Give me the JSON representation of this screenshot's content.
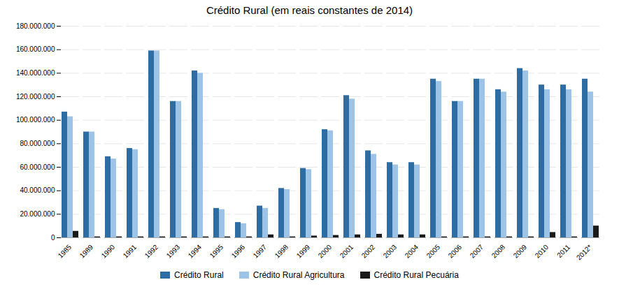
{
  "chart_data": {
    "type": "bar",
    "title": "Crédito Rural (em reais constantes de 2014)",
    "categories": [
      "1985",
      "1989",
      "1990",
      "1991",
      "1992",
      "1993",
      "1994",
      "1995",
      "1996",
      "1997",
      "1998",
      "1999",
      "2000",
      "2001",
      "2002",
      "2003",
      "2004",
      "2005",
      "2006",
      "2007",
      "2008",
      "2009",
      "2010",
      "2011",
      "2012*"
    ],
    "series": [
      {
        "name": "Crédito Rural",
        "color": "#2e6da4",
        "values": [
          107000000,
          90000000,
          69000000,
          76000000,
          159000000,
          116000000,
          142000000,
          25000000,
          13000000,
          27000000,
          42000000,
          59000000,
          92000000,
          121000000,
          74000000,
          64000000,
          64000000,
          135000000,
          116000000,
          135000000,
          126000000,
          144000000,
          130000000,
          130000000,
          135000000
        ]
      },
      {
        "name": "Crédito Rural Agricultura",
        "color": "#9dc3e6",
        "values": [
          103000000,
          90000000,
          67000000,
          75000000,
          159000000,
          116000000,
          140000000,
          24000000,
          12000000,
          25000000,
          41000000,
          58000000,
          91000000,
          118000000,
          71000000,
          62000000,
          62000000,
          133000000,
          116000000,
          135000000,
          124000000,
          142000000,
          126000000,
          126000000,
          124000000
        ]
      },
      {
        "name": "Crédito Rural Pecuária",
        "color": "#1a1a1a",
        "values": [
          5500000,
          800000,
          800000,
          800000,
          800000,
          800000,
          800000,
          800000,
          800000,
          2500000,
          800000,
          1500000,
          2000000,
          2500000,
          3000000,
          2500000,
          2500000,
          800000,
          800000,
          800000,
          800000,
          800000,
          4500000,
          800000,
          10000000
        ]
      }
    ],
    "ylim": [
      0,
      180000000
    ],
    "yticks": [
      0,
      {
        "value": 20000000,
        "label": "20.000.000"
      },
      {
        "value": 40000000,
        "label": "40.000.000"
      },
      {
        "value": 60000000,
        "label": "60.000.000"
      },
      {
        "value": 80000000,
        "label": "80.000.000"
      },
      {
        "value": 100000000,
        "label": "100.000.000"
      },
      {
        "value": 120000000,
        "label": "120.000.000"
      },
      {
        "value": 140000000,
        "label": "140.000.000"
      },
      {
        "value": 160000000,
        "label": "160.000.000"
      },
      {
        "value": 180000000,
        "label": "180.000.000"
      }
    ],
    "grid": true,
    "legend": "bottom"
  }
}
